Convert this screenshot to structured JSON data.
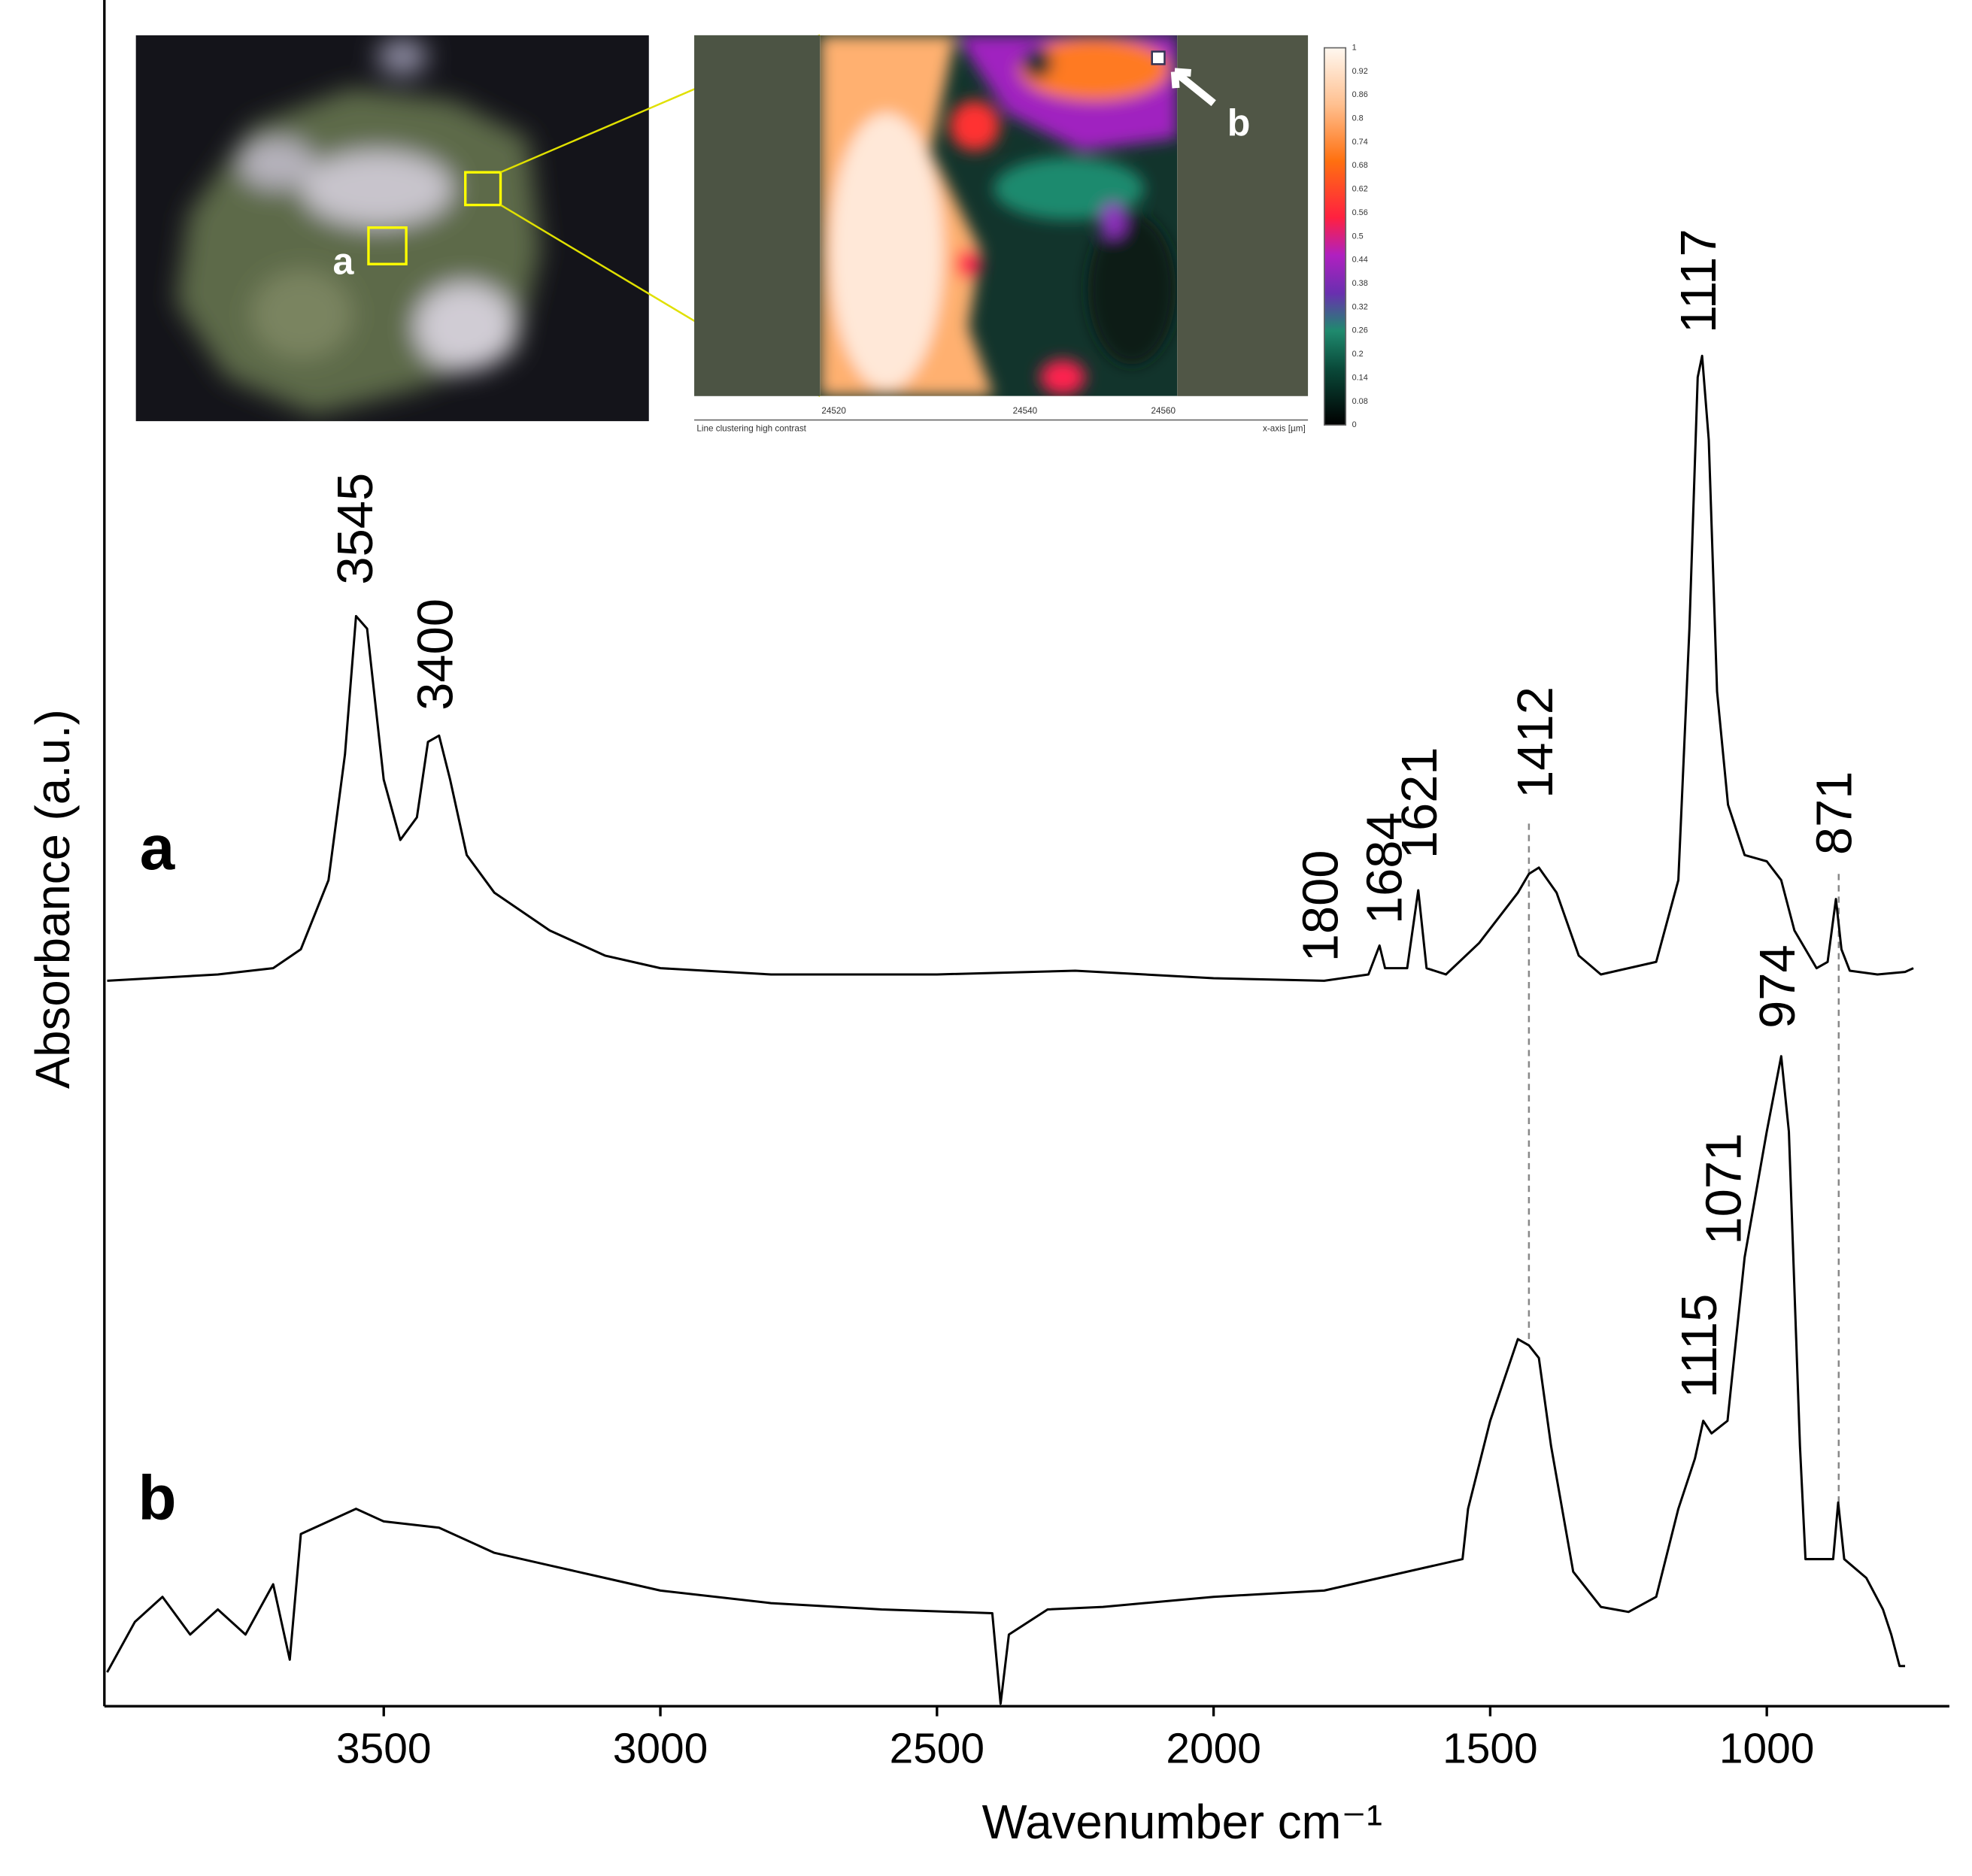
{
  "chart_data": {
    "type": "line",
    "x_label": "Wavenumber cm⁻¹",
    "y_label": "Absorbance (a.u.)",
    "xlim": [
      4005,
      670
    ],
    "ylim": [
      0,
      1357
    ],
    "xticks": [
      3500,
      3000,
      2500,
      2000,
      1500,
      1000
    ],
    "series": [
      {
        "name": "a",
        "color": "#000000",
        "x": [
          4000,
          3800,
          3700,
          3650,
          3600,
          3570,
          3550,
          3530,
          3500,
          3470,
          3440,
          3420,
          3400,
          3380,
          3350,
          3300,
          3200,
          3100,
          3000,
          2800,
          2500,
          2250,
          2000,
          1800,
          1720,
          1700,
          1690,
          1650,
          1630,
          1615,
          1580,
          1520,
          1450,
          1430,
          1412,
          1380,
          1340,
          1300,
          1200,
          1160,
          1140,
          1125,
          1117,
          1105,
          1090,
          1070,
          1040,
          1000,
          974,
          950,
          910,
          890,
          875,
          865,
          850,
          800,
          750,
          735
        ],
        "values": [
          577,
          582,
          587,
          602,
          657,
          757,
          867,
          857,
          737,
          689,
          707,
          767,
          772,
          737,
          677,
          647,
          617,
          597,
          587,
          582,
          582,
          585,
          579,
          577,
          582,
          605,
          587,
          587,
          649,
          587,
          582,
          607,
          647,
          662,
          667,
          647,
          597,
          582,
          592,
          657,
          857,
          1057,
          1074,
          1007,
          807,
          717,
          677,
          672,
          657,
          617,
          587,
          592,
          642,
          602,
          585,
          582,
          584,
          587
        ]
      },
      {
        "name": "b",
        "color": "#000000",
        "x": [
          4000,
          3950,
          3900,
          3850,
          3800,
          3750,
          3700,
          3670,
          3650,
          3600,
          3550,
          3500,
          3400,
          3300,
          3200,
          3100,
          3000,
          2800,
          2600,
          2400,
          2385,
          2370,
          2300,
          2200,
          2000,
          1800,
          1700,
          1600,
          1550,
          1540,
          1500,
          1450,
          1430,
          1412,
          1390,
          1350,
          1300,
          1250,
          1200,
          1160,
          1130,
          1115,
          1100,
          1071,
          1040,
          1000,
          974,
          960,
          940,
          930,
          900,
          880,
          871,
          860,
          820,
          790,
          775,
          760,
          750
        ],
        "values": [
          27,
          67,
          87,
          57,
          77,
          57,
          97,
          37,
          137,
          147,
          157,
          147,
          142,
          122,
          112,
          102,
          92,
          82,
          77,
          74,
          2,
          57,
          77,
          79,
          87,
          92,
          102,
          112,
          117,
          157,
          227,
          292,
          287,
          277,
          207,
          107,
          79,
          75,
          87,
          157,
          197,
          227,
          217,
          227,
          357,
          457,
          517,
          457,
          207,
          117,
          117,
          117,
          162,
          117,
          102,
          77,
          57,
          32,
          32
        ]
      }
    ],
    "annotations": [
      {
        "label": "3545",
        "x": 3545
      },
      {
        "label": "3400",
        "x": 3400
      },
      {
        "label": "1800",
        "x": 1800
      },
      {
        "label": "1684",
        "x": 1684
      },
      {
        "label": "1621",
        "x": 1621
      },
      {
        "label": "1412",
        "x": 1412
      },
      {
        "label": "1117",
        "x": 1117
      },
      {
        "label": "871",
        "x": 871
      },
      {
        "label": "974",
        "x": 974
      },
      {
        "label": "1071",
        "x": 1071
      },
      {
        "label": "1115",
        "x": 1115
      }
    ],
    "reference_lines": [
      1430,
      870
    ]
  },
  "inset": {
    "region_labels": [
      "a",
      "b"
    ],
    "map_xticks": [
      "24520",
      "24540",
      "24560"
    ],
    "map_x_label": "x-axis [µm]",
    "map_caption": "Line clustering high contrast",
    "colorbar_ticks": [
      "1",
      "0.92",
      "0.86",
      "0.8",
      "0.74",
      "0.68",
      "0.62",
      "0.56",
      "0.5",
      "0.44",
      "0.38",
      "0.32",
      "0.26",
      "0.2",
      "0.14",
      "0.08",
      "0"
    ]
  }
}
